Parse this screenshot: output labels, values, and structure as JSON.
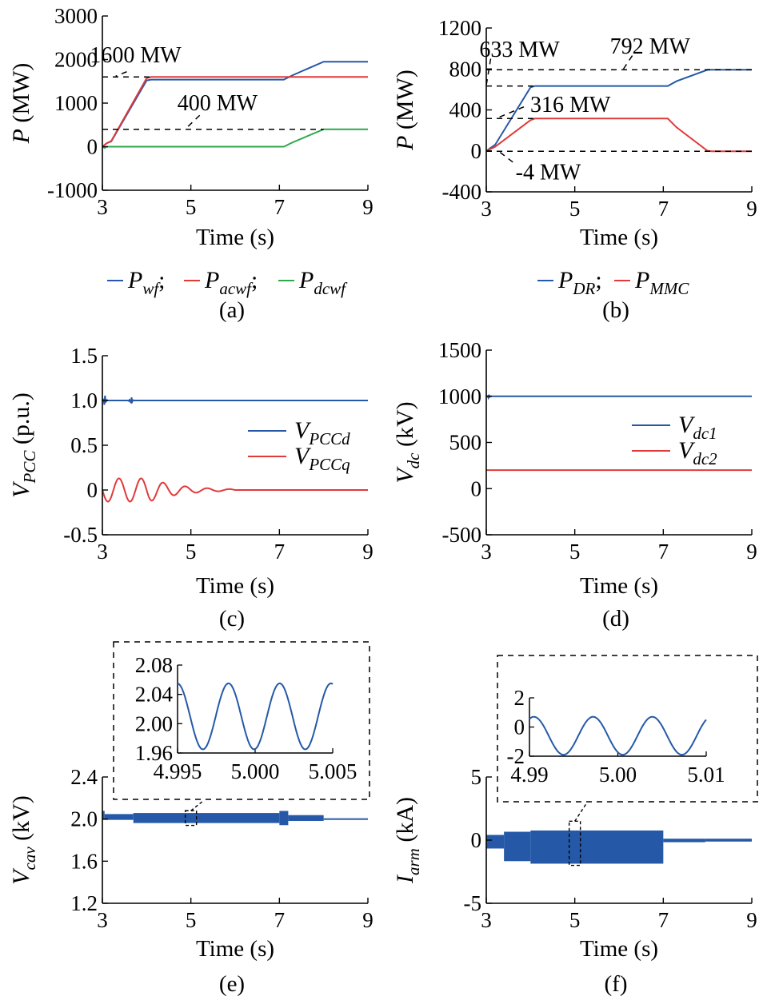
{
  "colors": {
    "blue": "#2559a8",
    "red": "#e03a3a",
    "green": "#2ea84a",
    "axis": "#000000"
  },
  "chart_data": [
    {
      "id": "a",
      "type": "line",
      "caption": "(a)",
      "xlabel": "Time (s)",
      "ylabel_main": "P",
      "ylabel_unit": " (MW)",
      "xlim": [
        3,
        9
      ],
      "ylim": [
        -1000,
        3000
      ],
      "xticks": [
        "3",
        "5",
        "7",
        "9"
      ],
      "yticks": [
        "-1000",
        "0",
        "1000",
        "2000",
        "3000"
      ],
      "series": [
        {
          "name": "P",
          "sub": "wf",
          "sep": ";",
          "color": "#2559a8",
          "style": "plain",
          "x": [
            3.0,
            3.1,
            3.2,
            4.0,
            4.1,
            7.1,
            7.3,
            8.0,
            9.0
          ],
          "y": [
            0,
            80,
            120,
            1520,
            1540,
            1540,
            1640,
            1950,
            1950
          ]
        },
        {
          "name": "P",
          "sub": "acwf",
          "sep": ";",
          "color": "#e03a3a",
          "style": "plain",
          "x": [
            3.0,
            3.1,
            3.2,
            4.0,
            4.1,
            9.0
          ],
          "y": [
            0,
            80,
            130,
            1570,
            1600,
            1600
          ]
        },
        {
          "name": "P",
          "sub": "dcwf",
          "sep": "",
          "color": "#2ea84a",
          "style": "plain",
          "x": [
            3.0,
            3.05,
            3.1,
            7.1,
            7.3,
            8.0,
            9.0
          ],
          "y": [
            0,
            -30,
            0,
            0,
            100,
            400,
            400
          ]
        }
      ],
      "refs": [
        {
          "y": 1600,
          "x0": 3.0,
          "x1": 4.1
        },
        {
          "y": 400,
          "x0": 3.0,
          "x1": 8.0
        }
      ],
      "annotations": [
        {
          "text": "1600 MW",
          "x": 3.75,
          "y": 2100,
          "lx": 3.55,
          "ly": 1720,
          "lx2": 3.3,
          "ly2": 1620
        },
        {
          "text": "400 MW",
          "x": 5.6,
          "y": 1000,
          "lx": 5.2,
          "ly": 720,
          "lx2": 4.9,
          "ly2": 430
        }
      ]
    },
    {
      "id": "b",
      "type": "line",
      "caption": "(b)",
      "xlabel": "Time (s)",
      "ylabel_main": "P",
      "ylabel_unit": " (MW)",
      "xlim": [
        3,
        9
      ],
      "ylim": [
        -400,
        1200
      ],
      "xticks": [
        "3",
        "5",
        "7",
        "9"
      ],
      "yticks": [
        "-400",
        "0",
        "400",
        "800",
        "1200"
      ],
      "series": [
        {
          "name": "P",
          "sub": "DR",
          "sep": ";",
          "color": "#2559a8",
          "style": "plain",
          "x": [
            3.0,
            3.2,
            4.0,
            4.1,
            7.1,
            7.3,
            8.0,
            9.0
          ],
          "y": [
            0,
            60,
            620,
            633,
            633,
            680,
            792,
            792
          ]
        },
        {
          "name": "P",
          "sub": "MMC",
          "sep": "",
          "color": "#e03a3a",
          "style": "plain",
          "x": [
            3.0,
            3.2,
            4.0,
            4.1,
            7.1,
            7.3,
            8.0,
            8.1,
            9.0
          ],
          "y": [
            0,
            40,
            300,
            316,
            316,
            230,
            0,
            -4,
            -4
          ]
        }
      ],
      "refs": [
        {
          "y": 792,
          "x0": 3.0,
          "x1": 9.0
        },
        {
          "y": 633,
          "x0": 3.0,
          "x1": 4.1
        },
        {
          "y": 316,
          "x0": 3.0,
          "x1": 4.1
        },
        {
          "y": -4,
          "x0": 3.0,
          "x1": 9.0
        }
      ],
      "annotations": [
        {
          "text": "633 MW",
          "x": 3.75,
          "y": 990,
          "lx": 3.1,
          "ly": 900,
          "lx2": 3.0,
          "ly2": 640
        },
        {
          "text": "792 MW",
          "x": 6.7,
          "y": 1020,
          "lx": 6.3,
          "ly": 930,
          "lx2": 6.1,
          "ly2": 800
        },
        {
          "text": "316 MW",
          "x": 4.9,
          "y": 450,
          "lx": 3.85,
          "ly": 430,
          "lx2": 3.3,
          "ly2": 330
        },
        {
          "text": "-4 MW",
          "x": 4.4,
          "y": -210,
          "lx": 3.6,
          "ly": -110,
          "lx2": 3.3,
          "ly2": -10
        }
      ]
    },
    {
      "id": "c",
      "type": "line",
      "caption": "(c)",
      "xlabel": "Time (s)",
      "ylabel_main": "V",
      "ylabel_sub": "PCC",
      "ylabel_unit": " (p.u.)",
      "xlim": [
        3,
        9
      ],
      "ylim": [
        -0.5,
        1.5
      ],
      "xticks": [
        "3",
        "5",
        "7",
        "9"
      ],
      "yticks": [
        "-0.5",
        "0",
        "0.5",
        "1.0",
        "1.5"
      ],
      "legend_position": "center-right",
      "series": [
        {
          "name": "V",
          "sub": "PCCd",
          "color": "#2559a8",
          "style": "blip",
          "base": 1.0,
          "blips": [
            {
              "x": 3.05,
              "amp": 0.08
            },
            {
              "x": 3.65,
              "amp": 0.05
            }
          ]
        },
        {
          "name": "V",
          "sub": "PCCq",
          "color": "#e03a3a",
          "style": "osc",
          "base": 0.0,
          "osc": [
            {
              "x0": 3.0,
              "x1": 4.0,
              "amp": 0.13,
              "period": 0.5
            },
            {
              "x0": 4.0,
              "x1": 6.0,
              "amp": 0.14,
              "period": 0.5,
              "decay": 1.4
            }
          ]
        }
      ]
    },
    {
      "id": "d",
      "type": "line",
      "caption": "(d)",
      "xlabel": "Time (s)",
      "ylabel_main": "V",
      "ylabel_sub": "dc",
      "ylabel_unit": " (kV)",
      "xlim": [
        3,
        9
      ],
      "ylim": [
        -500,
        1500
      ],
      "xticks": [
        "3",
        "5",
        "7",
        "9"
      ],
      "yticks": [
        "-500",
        "0",
        "500",
        "1000",
        "1500"
      ],
      "legend_position": "center-right",
      "series": [
        {
          "name": "V",
          "sub": "dc1",
          "color": "#2559a8",
          "style": "blip",
          "base": 1000,
          "blips": [
            {
              "x": 3.05,
              "amp": 25
            }
          ]
        },
        {
          "name": "V",
          "sub": "dc2",
          "color": "#e03a3a",
          "style": "blip",
          "base": 200,
          "blips": []
        }
      ]
    },
    {
      "id": "e",
      "type": "line",
      "caption": "(e)",
      "xlabel": "Time (s)",
      "ylabel_main": "V",
      "ylabel_sub": "cav",
      "ylabel_unit": " (kV)",
      "xlim": [
        3,
        9
      ],
      "ylim": [
        1.2,
        2.4
      ],
      "xticks": [
        "3",
        "5",
        "7",
        "9"
      ],
      "yticks": [
        "1.2",
        "1.6",
        "2.0",
        "2.4"
      ],
      "series": [
        {
          "name": "V",
          "sub": "cav",
          "color": "#2559a8",
          "style": "band",
          "bands": [
            {
              "x0": 3.0,
              "x1": 3.05,
              "lo": 2.0,
              "hi": 2.07
            },
            {
              "x0": 3.05,
              "x1": 3.7,
              "lo": 2.0,
              "hi": 2.04
            },
            {
              "x0": 3.7,
              "x1": 7.0,
              "lo": 1.97,
              "hi": 2.05
            },
            {
              "x0": 7.0,
              "x1": 7.2,
              "lo": 1.95,
              "hi": 2.07
            },
            {
              "x0": 7.2,
              "x1": 8.0,
              "lo": 1.99,
              "hi": 2.03
            },
            {
              "x0": 8.0,
              "x1": 9.0,
              "lo": 2.0,
              "hi": 2.0
            }
          ]
        }
      ],
      "inset": {
        "xlim": [
          4.995,
          5.005
        ],
        "ylim": [
          1.96,
          2.08
        ],
        "xticks": [
          "4.995",
          "5.000",
          "5.005"
        ],
        "yticks": [
          "1.96",
          "2.00",
          "2.04",
          "2.08"
        ],
        "wave": {
          "center": 2.01,
          "amp": 0.045,
          "period": 0.0033,
          "phase": 1.6
        }
      }
    },
    {
      "id": "f",
      "type": "line",
      "caption": "(f)",
      "xlabel": "Time (s)",
      "ylabel_main": "I",
      "ylabel_sub": "arm",
      "ylabel_unit": " (kA)",
      "xlim": [
        3,
        9
      ],
      "ylim": [
        -5,
        5
      ],
      "xticks": [
        "3",
        "5",
        "7",
        "9"
      ],
      "yticks": [
        "-5",
        "0",
        "5"
      ],
      "series": [
        {
          "name": "I",
          "sub": "arm",
          "color": "#2559a8",
          "style": "band",
          "bands": [
            {
              "x0": 3.0,
              "x1": 3.4,
              "lo": -0.6,
              "hi": 0.35
            },
            {
              "x0": 3.4,
              "x1": 4.0,
              "lo": -1.6,
              "hi": 0.6
            },
            {
              "x0": 4.0,
              "x1": 7.0,
              "lo": -1.8,
              "hi": 0.7
            },
            {
              "x0": 7.0,
              "x1": 7.95,
              "lo": -0.1,
              "hi": 0.05
            },
            {
              "x0": 7.95,
              "x1": 9.0,
              "lo": -0.05,
              "hi": 0.05
            }
          ]
        }
      ],
      "inset": {
        "xlim": [
          4.99,
          5.01
        ],
        "ylim": [
          -2,
          2
        ],
        "xticks": [
          "4.99",
          "5.00",
          "5.01"
        ],
        "yticks": [
          "-2",
          "0",
          "2"
        ],
        "wave": {
          "center": -0.6,
          "amp": 1.3,
          "period": 0.0067,
          "phase": 1.1
        }
      }
    }
  ]
}
